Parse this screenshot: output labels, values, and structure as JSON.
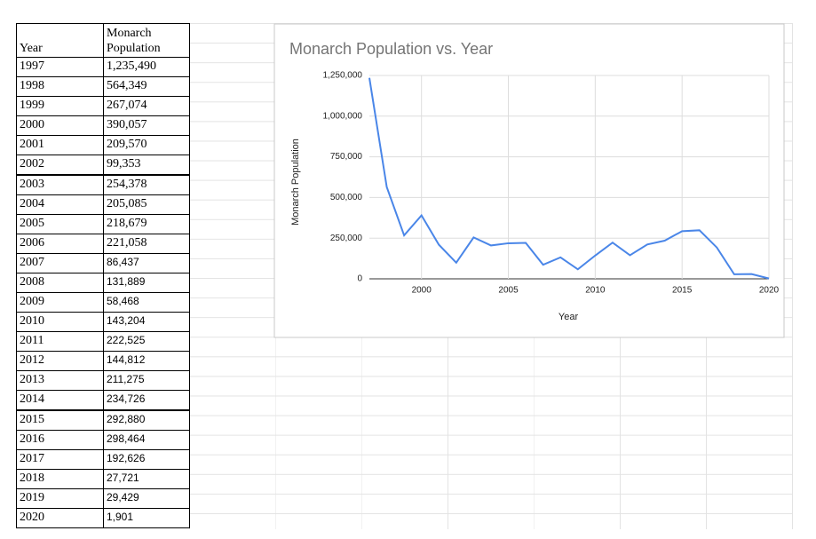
{
  "table": {
    "header": [
      "Year",
      "Monarch Population"
    ],
    "rows": [
      [
        "1997",
        "1,235,490"
      ],
      [
        "1998",
        "564,349"
      ],
      [
        "1999",
        "267,074"
      ],
      [
        "2000",
        "390,057"
      ],
      [
        "2001",
        "209,570"
      ],
      [
        "2002",
        "99,353"
      ],
      [
        "2003",
        "254,378"
      ],
      [
        "2004",
        "205,085"
      ],
      [
        "2005",
        "218,679"
      ],
      [
        "2006",
        "221,058"
      ],
      [
        "2007",
        "86,437"
      ],
      [
        "2008",
        "131,889"
      ],
      [
        "2009",
        "58,468"
      ],
      [
        "2010",
        "143,204"
      ],
      [
        "2011",
        "222,525"
      ],
      [
        "2012",
        "144,812"
      ],
      [
        "2013",
        "211,275"
      ],
      [
        "2014",
        "234,726"
      ],
      [
        "2015",
        "292,880"
      ],
      [
        "2016",
        "298,464"
      ],
      [
        "2017",
        "192,626"
      ],
      [
        "2018",
        "27,721"
      ],
      [
        "2019",
        "29,429"
      ],
      [
        "2020",
        "1,901"
      ]
    ]
  },
  "chart_data": {
    "type": "line",
    "title": "Monarch Population vs. Year",
    "x_label": "Year",
    "y_label": "Monarch Population",
    "x": [
      1997,
      1998,
      1999,
      2000,
      2001,
      2002,
      2003,
      2004,
      2005,
      2006,
      2007,
      2008,
      2009,
      2010,
      2011,
      2012,
      2013,
      2014,
      2015,
      2016,
      2017,
      2018,
      2019,
      2020
    ],
    "series": [
      {
        "name": "Monarch Population",
        "color": "#4a86e8",
        "values": [
          1235490,
          564349,
          267074,
          390057,
          209570,
          99353,
          254378,
          205085,
          218679,
          221058,
          86437,
          131889,
          58468,
          143204,
          222525,
          144812,
          211275,
          234726,
          292880,
          298464,
          192626,
          27721,
          29429,
          1901
        ]
      }
    ],
    "xlim": [
      1997,
      2020
    ],
    "xticks": [
      2000,
      2005,
      2010,
      2015,
      2020
    ],
    "ylim": [
      0,
      1250000
    ],
    "yticks": [
      0,
      {
        "value": 250000,
        "label": "250,000"
      },
      {
        "value": 500000,
        "label": "500,000"
      },
      {
        "value": 750000,
        "label": "750,000"
      },
      {
        "value": 1000000,
        "label": "1,000,000"
      },
      {
        "value": 1250000,
        "label": "1,250,000"
      }
    ],
    "grid": true
  }
}
